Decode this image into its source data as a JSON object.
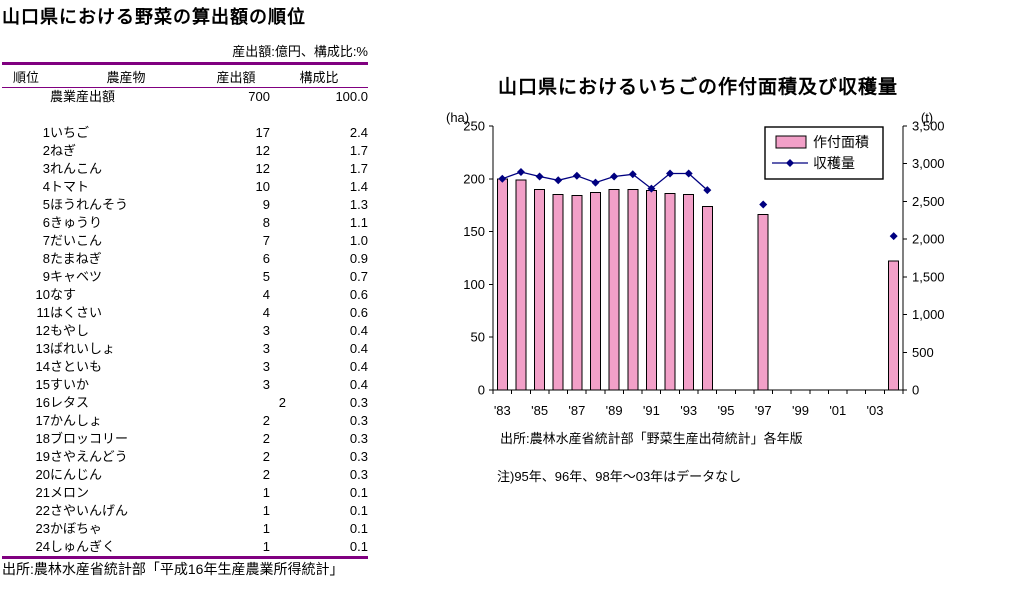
{
  "table_panel": {
    "title": "山口県における野菜の算出額の順位",
    "unit_note": "産出額:億円、構成比:%",
    "columns": [
      "順位",
      "農産物",
      "産出額",
      "構成比"
    ],
    "total_row": {
      "label": "農業産出額",
      "value": "700",
      "share": "100.0"
    },
    "rows": [
      {
        "rank": "1",
        "name": "いちご",
        "value": "17",
        "share": "2.4"
      },
      {
        "rank": "2",
        "name": "ねぎ",
        "value": "12",
        "share": "1.7"
      },
      {
        "rank": "3",
        "name": "れんこん",
        "value": "12",
        "share": "1.7"
      },
      {
        "rank": "4",
        "name": "トマト",
        "value": "10",
        "share": "1.4"
      },
      {
        "rank": "5",
        "name": "ほうれんそう",
        "value": "9",
        "share": "1.3"
      },
      {
        "rank": "6",
        "name": "きゅうり",
        "value": "8",
        "share": "1.1"
      },
      {
        "rank": "7",
        "name": "だいこん",
        "value": "7",
        "share": "1.0"
      },
      {
        "rank": "8",
        "name": "たまねぎ",
        "value": "6",
        "share": "0.9"
      },
      {
        "rank": "9",
        "name": "キャベツ",
        "value": "5",
        "share": "0.7"
      },
      {
        "rank": "10",
        "name": "なす",
        "value": "4",
        "share": "0.6"
      },
      {
        "rank": "11",
        "name": "はくさい",
        "value": "4",
        "share": "0.6"
      },
      {
        "rank": "12",
        "name": "もやし",
        "value": "3",
        "share": "0.4"
      },
      {
        "rank": "13",
        "name": "ばれいしょ",
        "value": "3",
        "share": "0.4"
      },
      {
        "rank": "14",
        "name": "さといも",
        "value": "3",
        "share": "0.4"
      },
      {
        "rank": "15",
        "name": "すいか",
        "value": "3",
        "share": "0.4"
      },
      {
        "rank": "16",
        "name": "レタス",
        "value": "2",
        "share": "0.3",
        "value_offset": true
      },
      {
        "rank": "17",
        "name": "かんしょ",
        "value": "2",
        "share": "0.3"
      },
      {
        "rank": "18",
        "name": "ブロッコリー",
        "value": "2",
        "share": "0.3"
      },
      {
        "rank": "19",
        "name": "さやえんどう",
        "value": "2",
        "share": "0.3"
      },
      {
        "rank": "20",
        "name": "にんじん",
        "value": "2",
        "share": "0.3"
      },
      {
        "rank": "21",
        "name": "メロン",
        "value": "1",
        "share": "0.1"
      },
      {
        "rank": "22",
        "name": "さやいんげん",
        "value": "1",
        "share": "0.1"
      },
      {
        "rank": "23",
        "name": "かぼちゃ",
        "value": "1",
        "share": "0.1"
      },
      {
        "rank": "24",
        "name": "しゅんぎく",
        "value": "1",
        "share": "0.1"
      }
    ],
    "source": "出所:農林水産省統計部「平成16年生産農業所得統計」",
    "accent_color": "#800080"
  },
  "chart_data": {
    "type": "bar",
    "combo": "bar+line dual axis",
    "title": "山口県におけるいちごの作付面積及び収穫量",
    "left_axis": {
      "label": "(ha)",
      "min": 0,
      "max": 250,
      "ticks": [
        "250",
        "200",
        "150",
        "100",
        "50",
        "0"
      ]
    },
    "right_axis": {
      "label": "(t)",
      "min": 0,
      "max": 3500,
      "ticks": [
        "3,500",
        "3,000",
        "2,500",
        "2,000",
        "1,500",
        "1,000",
        "500",
        "0"
      ]
    },
    "x_start_year": 1983,
    "x_end_year": 2004,
    "x_tick_labels": [
      "'83",
      "'85",
      "'87",
      "'89",
      "'91",
      "'93",
      "'95",
      "'97",
      "'99",
      "'01",
      "'03"
    ],
    "legend_position": "top-right",
    "grid": false,
    "series": [
      {
        "name": "作付面積",
        "kind": "bar",
        "axis": "left",
        "color": "#F2A0C8",
        "border": "#000000",
        "values": [
          200,
          199,
          190,
          185,
          184,
          187,
          190,
          190,
          189,
          186,
          185,
          174,
          null,
          null,
          166,
          null,
          null,
          null,
          null,
          null,
          null,
          122
        ]
      },
      {
        "name": "収穫量",
        "kind": "line",
        "axis": "right",
        "color": "#000080",
        "marker": "diamond",
        "values": [
          2800,
          2890,
          2830,
          2780,
          2840,
          2750,
          2830,
          2860,
          2670,
          2870,
          2870,
          2650,
          null,
          null,
          2460,
          null,
          null,
          null,
          null,
          null,
          null,
          2040
        ]
      }
    ],
    "source": "出所:農林水産省統計部「野菜生産出荷統計」各年版",
    "note": "注)95年、96年、98年～03年はデータなし"
  }
}
